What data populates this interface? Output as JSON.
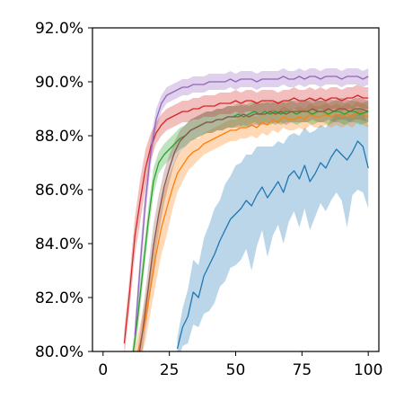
{
  "chart_data": {
    "type": "line",
    "title": "",
    "xlabel": "",
    "ylabel": "",
    "xlim": [
      -4,
      104
    ],
    "ylim": [
      80.0,
      92.0
    ],
    "xticks": [
      0,
      25,
      50,
      75,
      100
    ],
    "xtick_labels": [
      "0",
      "25",
      "50",
      "75",
      "100"
    ],
    "yticks": [
      80,
      82,
      84,
      86,
      88,
      90,
      92
    ],
    "ytick_labels": [
      "80.0%",
      "82.0%",
      "84.0%",
      "86.0%",
      "88.0%",
      "90.0%",
      "92.0%"
    ],
    "grid": false,
    "legend": "none",
    "band_opacity": 0.3,
    "series": [
      {
        "color": "#1f77b4",
        "x": [
          28,
          30,
          32,
          34,
          36,
          38,
          40,
          42,
          44,
          46,
          48,
          50,
          52,
          54,
          56,
          58,
          60,
          62,
          64,
          66,
          68,
          70,
          72,
          74,
          76,
          78,
          80,
          82,
          84,
          86,
          88,
          90,
          92,
          94,
          96,
          98,
          100
        ],
        "mean": [
          80.1,
          80.9,
          81.3,
          82.2,
          82.0,
          82.8,
          83.2,
          83.6,
          84.1,
          84.5,
          84.9,
          85.1,
          85.3,
          85.6,
          85.4,
          85.8,
          86.1,
          85.7,
          86.0,
          86.3,
          85.9,
          86.5,
          86.7,
          86.4,
          86.9,
          86.3,
          86.6,
          87.0,
          86.8,
          87.2,
          87.5,
          87.3,
          87.1,
          87.4,
          87.8,
          87.6,
          86.8
        ],
        "lower": [
          79.6,
          80.2,
          80.3,
          81.0,
          80.9,
          81.4,
          81.5,
          81.8,
          82.4,
          82.6,
          83.1,
          83.2,
          83.4,
          83.8,
          83.0,
          83.9,
          84.5,
          83.5,
          84.3,
          84.7,
          84.0,
          84.8,
          85.2,
          84.6,
          85.3,
          84.5,
          85.0,
          85.5,
          85.2,
          85.6,
          85.9,
          85.6,
          84.6,
          85.8,
          86.0,
          85.9,
          85.3
        ],
        "upper": [
          80.5,
          81.6,
          82.3,
          83.4,
          83.2,
          84.2,
          84.7,
          85.3,
          85.6,
          86.2,
          86.5,
          86.9,
          87.0,
          87.3,
          87.3,
          87.6,
          87.6,
          87.6,
          87.6,
          87.8,
          87.7,
          88.0,
          88.1,
          88.0,
          88.3,
          88.1,
          88.2,
          88.4,
          88.3,
          88.6,
          88.8,
          88.8,
          88.7,
          88.8,
          89.0,
          88.9,
          88.4
        ]
      },
      {
        "color": "#ff7f0e",
        "x": [
          12,
          14,
          16,
          18,
          20,
          22,
          24,
          26,
          28,
          30,
          32,
          34,
          36,
          38,
          40,
          42,
          44,
          46,
          48,
          50,
          52,
          54,
          56,
          58,
          60,
          62,
          64,
          66,
          68,
          70,
          72,
          74,
          76,
          78,
          80,
          82,
          84,
          86,
          88,
          90,
          92,
          94,
          96,
          98,
          100
        ],
        "mean": [
          79.6,
          80.3,
          81.2,
          82.4,
          83.6,
          84.6,
          85.3,
          86.0,
          86.6,
          86.9,
          87.2,
          87.4,
          87.5,
          87.7,
          87.8,
          87.9,
          88.0,
          88.1,
          88.2,
          88.2,
          88.3,
          88.3,
          88.4,
          88.3,
          88.5,
          88.4,
          88.6,
          88.5,
          88.7,
          88.6,
          88.6,
          88.7,
          88.6,
          88.8,
          88.7,
          88.7,
          88.8,
          88.7,
          88.8,
          88.7,
          88.8,
          88.7,
          88.9,
          88.8,
          88.7
        ],
        "lower": [
          79.1,
          79.6,
          80.4,
          81.5,
          82.6,
          83.6,
          84.3,
          85.2,
          85.9,
          86.3,
          86.7,
          86.9,
          87.1,
          87.3,
          87.4,
          87.5,
          87.6,
          87.7,
          87.8,
          87.8,
          87.9,
          87.9,
          88.0,
          87.9,
          88.1,
          88.0,
          88.2,
          88.1,
          88.3,
          88.2,
          88.2,
          88.3,
          88.2,
          88.4,
          88.3,
          88.3,
          88.4,
          88.3,
          88.4,
          88.3,
          88.4,
          88.3,
          88.5,
          88.4,
          88.3
        ],
        "upper": [
          80.1,
          81.0,
          82.0,
          83.3,
          84.6,
          85.6,
          86.3,
          86.8,
          87.3,
          87.5,
          87.7,
          87.9,
          87.9,
          88.1,
          88.2,
          88.3,
          88.4,
          88.5,
          88.6,
          88.6,
          88.7,
          88.7,
          88.8,
          88.7,
          88.9,
          88.8,
          89.0,
          88.9,
          89.1,
          89.0,
          89.0,
          89.1,
          89.0,
          89.2,
          89.1,
          89.1,
          89.2,
          89.1,
          89.2,
          89.1,
          89.2,
          89.1,
          89.3,
          89.2,
          89.1
        ]
      },
      {
        "color": "#2ca02c",
        "x": [
          11,
          13,
          15,
          17,
          19,
          21,
          23,
          25,
          27,
          29,
          31,
          33,
          35,
          37,
          39,
          41,
          43,
          45,
          47,
          49,
          51,
          53,
          55,
          57,
          59,
          61,
          63,
          65,
          67,
          69,
          71,
          73,
          75,
          77,
          79,
          81,
          83,
          85,
          87,
          89,
          91,
          93,
          95,
          97,
          100
        ],
        "mean": [
          79.7,
          81.2,
          83.0,
          84.8,
          86.3,
          87.0,
          87.3,
          87.5,
          87.7,
          87.9,
          88.0,
          88.2,
          88.3,
          88.4,
          88.5,
          88.5,
          88.6,
          88.6,
          88.7,
          88.7,
          88.8,
          88.7,
          88.8,
          88.9,
          88.8,
          88.9,
          88.8,
          88.9,
          88.8,
          88.9,
          88.9,
          88.8,
          88.9,
          88.9,
          88.8,
          88.9,
          88.9,
          88.8,
          88.9,
          88.9,
          88.8,
          88.9,
          88.9,
          88.8,
          88.9
        ],
        "lower": [
          79.3,
          80.7,
          82.5,
          84.3,
          85.8,
          86.6,
          86.9,
          87.1,
          87.3,
          87.5,
          87.6,
          87.8,
          87.9,
          88.0,
          88.1,
          88.1,
          88.2,
          88.2,
          88.3,
          88.3,
          88.4,
          88.3,
          88.4,
          88.5,
          88.4,
          88.5,
          88.4,
          88.5,
          88.4,
          88.5,
          88.5,
          88.4,
          88.5,
          88.5,
          88.4,
          88.5,
          88.5,
          88.4,
          88.5,
          88.5,
          88.4,
          88.5,
          88.5,
          88.4,
          88.5
        ],
        "upper": [
          80.1,
          81.7,
          83.5,
          85.3,
          86.8,
          87.4,
          87.7,
          87.9,
          88.1,
          88.3,
          88.4,
          88.6,
          88.7,
          88.8,
          88.9,
          88.9,
          89.0,
          89.0,
          89.1,
          89.1,
          89.2,
          89.1,
          89.2,
          89.3,
          89.2,
          89.3,
          89.2,
          89.3,
          89.2,
          89.3,
          89.3,
          89.2,
          89.3,
          89.3,
          89.2,
          89.3,
          89.3,
          89.2,
          89.3,
          89.3,
          89.2,
          89.3,
          89.3,
          89.2,
          89.3
        ]
      },
      {
        "color": "#d62728",
        "x": [
          8,
          10,
          12,
          14,
          16,
          18,
          20,
          22,
          24,
          26,
          28,
          30,
          32,
          34,
          36,
          38,
          40,
          42,
          44,
          46,
          48,
          50,
          52,
          54,
          56,
          58,
          60,
          62,
          64,
          66,
          68,
          70,
          72,
          74,
          76,
          78,
          80,
          82,
          84,
          86,
          88,
          90,
          92,
          94,
          96,
          98,
          100
        ],
        "mean": [
          80.3,
          82.2,
          84.3,
          85.6,
          86.8,
          87.6,
          88.1,
          88.4,
          88.6,
          88.7,
          88.8,
          88.9,
          88.9,
          89.0,
          89.0,
          89.1,
          89.1,
          89.1,
          89.2,
          89.2,
          89.2,
          89.3,
          89.2,
          89.3,
          89.3,
          89.2,
          89.3,
          89.3,
          89.3,
          89.2,
          89.3,
          89.3,
          89.4,
          89.3,
          89.3,
          89.4,
          89.3,
          89.4,
          89.3,
          89.4,
          89.4,
          89.3,
          89.4,
          89.4,
          89.5,
          89.4,
          89.4
        ],
        "lower": [
          79.8,
          81.6,
          83.6,
          84.8,
          86.1,
          87.1,
          87.7,
          88.0,
          88.2,
          88.3,
          88.4,
          88.5,
          88.5,
          88.6,
          88.6,
          88.7,
          88.7,
          88.7,
          88.8,
          88.8,
          88.8,
          88.9,
          88.8,
          88.9,
          88.9,
          88.8,
          88.9,
          88.9,
          88.9,
          88.8,
          88.9,
          88.9,
          89.0,
          88.9,
          88.9,
          89.0,
          88.9,
          89.0,
          88.9,
          89.0,
          89.0,
          88.9,
          89.0,
          89.0,
          89.1,
          89.0,
          89.0
        ],
        "upper": [
          80.8,
          82.8,
          85.0,
          86.4,
          87.5,
          88.1,
          88.5,
          88.8,
          89.0,
          89.1,
          89.2,
          89.3,
          89.3,
          89.4,
          89.4,
          89.5,
          89.5,
          89.5,
          89.6,
          89.6,
          89.6,
          89.7,
          89.6,
          89.7,
          89.7,
          89.6,
          89.7,
          89.7,
          89.7,
          89.6,
          89.7,
          89.7,
          89.8,
          89.7,
          89.7,
          89.8,
          89.7,
          89.8,
          89.7,
          89.8,
          89.8,
          89.7,
          89.8,
          89.8,
          89.9,
          89.8,
          89.8
        ]
      },
      {
        "color": "#9467bd",
        "x": [
          12,
          14,
          16,
          18,
          20,
          22,
          24,
          26,
          28,
          30,
          32,
          34,
          36,
          38,
          40,
          42,
          44,
          46,
          48,
          50,
          52,
          54,
          56,
          58,
          60,
          62,
          64,
          66,
          68,
          70,
          72,
          74,
          76,
          78,
          80,
          82,
          84,
          86,
          88,
          90,
          92,
          94,
          96,
          98,
          100
        ],
        "mean": [
          80.6,
          83.2,
          85.6,
          87.4,
          88.6,
          89.2,
          89.5,
          89.6,
          89.7,
          89.8,
          89.8,
          89.9,
          89.9,
          89.9,
          90.0,
          90.0,
          90.0,
          90.0,
          90.1,
          90.0,
          90.1,
          90.1,
          90.1,
          90.0,
          90.1,
          90.1,
          90.1,
          90.1,
          90.2,
          90.1,
          90.1,
          90.2,
          90.1,
          90.2,
          90.2,
          90.1,
          90.2,
          90.2,
          90.2,
          90.1,
          90.2,
          90.2,
          90.2,
          90.1,
          90.2
        ],
        "lower": [
          80.1,
          82.6,
          85.0,
          86.9,
          88.2,
          88.9,
          89.2,
          89.3,
          89.4,
          89.5,
          89.5,
          89.6,
          89.6,
          89.6,
          89.7,
          89.7,
          89.7,
          89.7,
          89.8,
          89.7,
          89.8,
          89.8,
          89.8,
          89.7,
          89.8,
          89.8,
          89.8,
          89.8,
          89.9,
          89.8,
          89.8,
          89.9,
          89.8,
          89.9,
          89.9,
          89.8,
          89.9,
          89.9,
          89.9,
          89.8,
          89.9,
          89.9,
          89.9,
          89.8,
          89.9
        ],
        "upper": [
          81.1,
          83.8,
          86.2,
          87.9,
          89.0,
          89.5,
          89.8,
          89.9,
          90.0,
          90.1,
          90.1,
          90.2,
          90.2,
          90.2,
          90.3,
          90.3,
          90.3,
          90.3,
          90.4,
          90.3,
          90.4,
          90.4,
          90.4,
          90.3,
          90.4,
          90.4,
          90.4,
          90.4,
          90.5,
          90.4,
          90.4,
          90.5,
          90.4,
          90.5,
          90.5,
          90.4,
          90.5,
          90.5,
          90.5,
          90.4,
          90.5,
          90.5,
          90.5,
          90.4,
          90.5
        ]
      },
      {
        "color": "#8c564b",
        "x": [
          13,
          15,
          17,
          19,
          21,
          23,
          25,
          27,
          29,
          31,
          33,
          35,
          37,
          39,
          41,
          43,
          45,
          47,
          49,
          51,
          53,
          55,
          57,
          59,
          61,
          63,
          65,
          67,
          69,
          71,
          73,
          75,
          77,
          79,
          81,
          83,
          85,
          87,
          89,
          91,
          93,
          95,
          97,
          100
        ],
        "mean": [
          79.5,
          80.8,
          82.3,
          83.9,
          85.1,
          86.1,
          86.8,
          87.4,
          87.8,
          88.0,
          88.2,
          88.3,
          88.4,
          88.5,
          88.5,
          88.6,
          88.6,
          88.7,
          88.7,
          88.7,
          88.8,
          88.7,
          88.8,
          88.8,
          88.8,
          88.9,
          88.8,
          88.9,
          88.8,
          88.9,
          88.9,
          88.9,
          88.9,
          89.0,
          88.9,
          88.9,
          89.0,
          88.9,
          89.0,
          89.0,
          88.9,
          89.0,
          89.0,
          88.9
        ],
        "lower": [
          79.0,
          80.1,
          81.5,
          83.1,
          84.4,
          85.5,
          86.3,
          87.0,
          87.4,
          87.6,
          87.8,
          87.9,
          88.0,
          88.1,
          88.1,
          88.2,
          88.2,
          88.3,
          88.3,
          88.3,
          88.4,
          88.3,
          88.4,
          88.4,
          88.4,
          88.5,
          88.4,
          88.5,
          88.4,
          88.5,
          88.5,
          88.5,
          88.5,
          88.6,
          88.5,
          88.5,
          88.6,
          88.5,
          88.6,
          88.6,
          88.5,
          88.6,
          88.6,
          88.5
        ],
        "upper": [
          80.0,
          81.5,
          83.1,
          84.7,
          85.8,
          86.7,
          87.3,
          87.8,
          88.2,
          88.4,
          88.6,
          88.7,
          88.8,
          88.9,
          88.9,
          89.0,
          89.0,
          89.1,
          89.1,
          89.1,
          89.2,
          89.1,
          89.2,
          89.2,
          89.2,
          89.3,
          89.2,
          89.3,
          89.2,
          89.3,
          89.3,
          89.3,
          89.3,
          89.4,
          89.3,
          89.3,
          89.4,
          89.3,
          89.4,
          89.4,
          89.3,
          89.4,
          89.4,
          89.3
        ]
      }
    ]
  }
}
